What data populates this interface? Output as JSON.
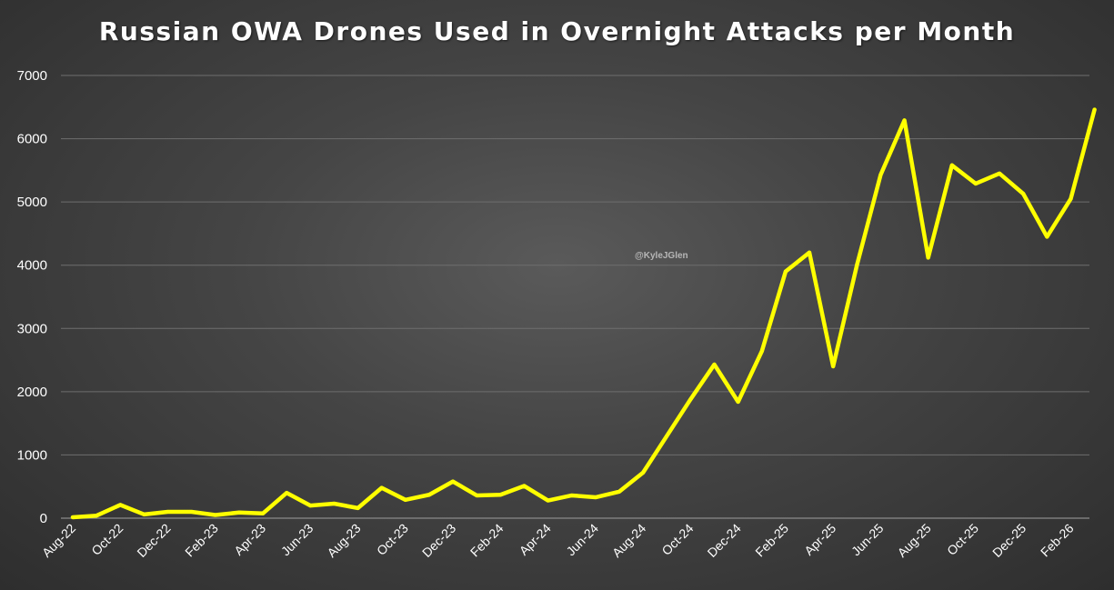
{
  "chart_data": {
    "type": "line",
    "title": "Russian OWA Drones Used in Overnight Attacks per Month",
    "watermark": "@KyleJGlen",
    "xlabel": "",
    "ylabel": "",
    "ylim": [
      0,
      7000
    ],
    "y_ticks": [
      "0",
      "1000",
      "2000",
      "3000",
      "4000",
      "5000",
      "6000",
      "7000"
    ],
    "x_tick_labels": [
      "Aug-22",
      "Oct-22",
      "Dec-22",
      "Feb-23",
      "Apr-23",
      "Jun-23",
      "Aug-23",
      "Oct-23",
      "Dec-23",
      "Feb-24",
      "Apr-24",
      "Jun-24",
      "Aug-24",
      "Oct-24",
      "Dec-24",
      "Feb-25",
      "Apr-25",
      "Jun-25",
      "Aug-25",
      "Oct-25",
      "Dec-25",
      "Feb-26"
    ],
    "x": [
      "Aug-22",
      "Sep-22",
      "Oct-22",
      "Nov-22",
      "Dec-22",
      "Jan-23",
      "Feb-23",
      "Mar-23",
      "Apr-23",
      "May-23",
      "Jun-23",
      "Jul-23",
      "Aug-23",
      "Sep-23",
      "Oct-23",
      "Nov-23",
      "Dec-23",
      "Jan-24",
      "Feb-24",
      "Mar-24",
      "Apr-24",
      "May-24",
      "Jun-24",
      "Jul-24",
      "Aug-24",
      "Sep-24",
      "Oct-24",
      "Nov-24",
      "Dec-24",
      "Jan-25",
      "Feb-25",
      "Mar-25",
      "Apr-25",
      "May-25",
      "Jun-25",
      "Jul-25",
      "Aug-25",
      "Sep-25",
      "Oct-25",
      "Nov-25",
      "Dec-25",
      "Jan-26",
      "Feb-26",
      "Mar-26"
    ],
    "series": [
      {
        "values": [
          15,
          40,
          210,
          60,
          100,
          100,
          50,
          90,
          75,
          400,
          200,
          230,
          160,
          480,
          290,
          370,
          580,
          360,
          370,
          510,
          280,
          360,
          330,
          420,
          720,
          1300,
          1880,
          2430,
          1840,
          2640,
          3900,
          4200,
          2400,
          4000,
          5430,
          6290,
          4120,
          5580,
          5290,
          5450,
          5130,
          4450,
          5050,
          6460
        ],
        "color": "#ffff00"
      }
    ],
    "grid": true,
    "legend": "none"
  }
}
